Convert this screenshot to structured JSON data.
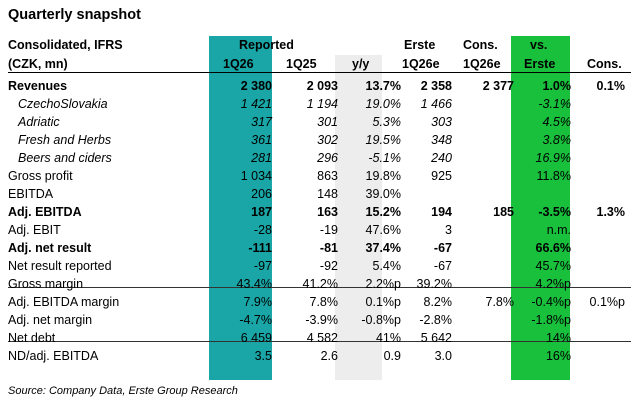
{
  "title": "Quarterly snapshot",
  "header": {
    "row1": {
      "label": "Consolidated, IFRS",
      "reported": "Reported",
      "erste": "Erste",
      "cons": "Cons.",
      "vs": "vs."
    },
    "row2": {
      "label": "(CZK, mn)",
      "q126": "1Q26",
      "q125": "1Q25",
      "yy": "y/y",
      "erste_q": "1Q26e",
      "cons_q": "1Q26e",
      "vs_erste": "Erste",
      "vs_cons": "Cons."
    }
  },
  "rows": [
    {
      "label": "Revenues",
      "q126": "2 380",
      "q125": "2 093",
      "yy": "13.7%",
      "erste": "2 358",
      "cons": "2 377",
      "vs_erste": "1.0%",
      "vs_cons": "0.1%",
      "style": "bold"
    },
    {
      "label": "CzechoSlovakia",
      "q126": "1 421",
      "q125": "1 194",
      "yy": "19.0%",
      "erste": "1 466",
      "cons": "",
      "vs_erste": "-3.1%",
      "vs_cons": "",
      "style": "ital"
    },
    {
      "label": "Adriatic",
      "q126": "317",
      "q125": "301",
      "yy": "5.3%",
      "erste": "303",
      "cons": "",
      "vs_erste": "4.5%",
      "vs_cons": "",
      "style": "ital"
    },
    {
      "label": "Fresh and Herbs",
      "q126": "361",
      "q125": "302",
      "yy": "19.5%",
      "erste": "348",
      "cons": "",
      "vs_erste": "3.8%",
      "vs_cons": "",
      "style": "ital"
    },
    {
      "label": "Beers and ciders",
      "q126": "281",
      "q125": "296",
      "yy": "-5.1%",
      "erste": "240",
      "cons": "",
      "vs_erste": "16.9%",
      "vs_cons": "",
      "style": "ital"
    },
    {
      "label": "Gross profit",
      "q126": "1 034",
      "q125": "863",
      "yy": "19.8%",
      "erste": "925",
      "cons": "",
      "vs_erste": "11.8%",
      "vs_cons": "",
      "style": ""
    },
    {
      "label": "EBITDA",
      "q126": "206",
      "q125": "148",
      "yy": "39.0%",
      "erste": "",
      "cons": "",
      "vs_erste": "",
      "vs_cons": "",
      "style": ""
    },
    {
      "label": "Adj. EBITDA",
      "q126": "187",
      "q125": "163",
      "yy": "15.2%",
      "erste": "194",
      "cons": "185",
      "vs_erste": "-3.5%",
      "vs_cons": "1.3%",
      "style": "bold"
    },
    {
      "label": "Adj. EBIT",
      "q126": "-28",
      "q125": "-19",
      "yy": "47.6%",
      "erste": "3",
      "cons": "",
      "vs_erste": "n.m.",
      "vs_cons": "",
      "style": ""
    },
    {
      "label": "Adj. net result",
      "q126": "-111",
      "q125": "-81",
      "yy": "37.4%",
      "erste": "-67",
      "cons": "",
      "vs_erste": "66.6%",
      "vs_cons": "",
      "style": "bold"
    },
    {
      "label": "Net result reported",
      "q126": "-97",
      "q125": "-92",
      "yy": "5.4%",
      "erste": "-67",
      "cons": "",
      "vs_erste": "45.7%",
      "vs_cons": "",
      "style": ""
    },
    {
      "label": "Gross margin",
      "q126": "43.4%",
      "q125": "41.2%",
      "yy": "2.2%p",
      "erste": "39.2%",
      "cons": "",
      "vs_erste": "4.2%p",
      "vs_cons": "",
      "style": ""
    },
    {
      "label": "Adj. EBITDA margin",
      "q126": "7.9%",
      "q125": "7.8%",
      "yy": "0.1%p",
      "erste": "8.2%",
      "cons": "7.8%",
      "vs_erste": "-0.4%p",
      "vs_cons": "0.1%p",
      "style": ""
    },
    {
      "label": "Adj. net margin",
      "q126": "-4.7%",
      "q125": "-3.9%",
      "yy": "-0.8%p",
      "erste": "-2.8%",
      "cons": "",
      "vs_erste": "-1.8%p",
      "vs_cons": "",
      "style": ""
    },
    {
      "label": "Net debt",
      "q126": "6 459",
      "q125": "4 582",
      "yy": "41%",
      "erste": "5 642",
      "cons": "",
      "vs_erste": "14%",
      "vs_cons": "",
      "style": ""
    },
    {
      "label": "ND/adj. EBITDA",
      "q126": "3.5",
      "q125": "2.6",
      "yy": "0.9",
      "erste": "3.0",
      "cons": "",
      "vs_erste": "16%",
      "vs_cons": "",
      "style": ""
    }
  ],
  "source": "Source: Company Data, Erste Group Research",
  "colors": {
    "reported_highlight": "#1aa6a6",
    "yy_highlight": "#ededed",
    "vs_erste_highlight": "#18c03c"
  }
}
